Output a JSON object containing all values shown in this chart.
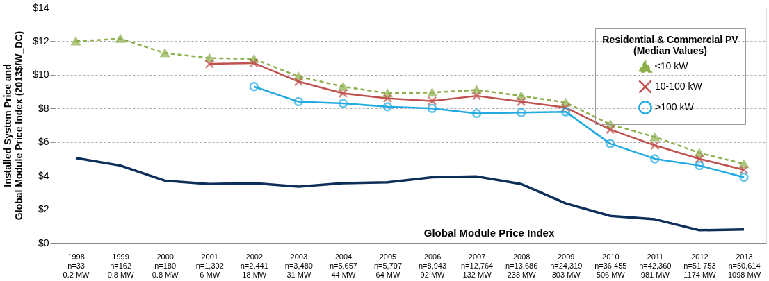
{
  "chart_data": {
    "type": "line",
    "ylabel": "Installed System Price and\nGlobal Module Price Index (2013$/W_DC)",
    "legend_title": "Residential & Commercial PV\n(Median Values)",
    "categories": [
      "1998\nn=33\n0.2 MW",
      "1999\nn=162\n0.8 MW",
      "2000\nn=180\n0.8 MW",
      "2001\nn=1,302\n6 MW",
      "2002\nn=2,441\n18 MW",
      "2003\nn=3,480\n31 MW",
      "2004\nn=5,657\n44 MW",
      "2005\nn=5,797\n64 MW",
      "2006\nn=8,943\n92 MW",
      "2007\nn=12,764\n132 MW",
      "2008\nn=13,686\n238 MW",
      "2009\nn=24,319\n303 MW",
      "2010\nn=36,455\n506 MW",
      "2011\nn=42,360\n981 MW",
      "2012\nn=51,753\n1174 MW",
      "2013\nn=50,614\n1098 MW"
    ],
    "series": [
      {
        "name": "≤10 kW",
        "color": "#8cae4b",
        "marker": "triangle",
        "line_style": "dashed",
        "values": [
          12.0,
          12.15,
          11.3,
          11.0,
          10.95,
          9.9,
          9.3,
          8.9,
          8.95,
          9.1,
          8.75,
          8.35,
          7.05,
          6.3,
          5.35,
          4.7
        ]
      },
      {
        "name": "10-100 kW",
        "color": "#c0504d",
        "marker": "cross",
        "line_style": "solid",
        "values": [
          null,
          null,
          null,
          10.65,
          10.7,
          9.6,
          8.9,
          8.6,
          8.45,
          8.75,
          8.4,
          8.05,
          6.75,
          5.8,
          5.0,
          4.35
        ]
      },
      {
        "name": ">100 kW",
        "color": "#21a9e1",
        "marker": "circle",
        "line_style": "solid",
        "values": [
          null,
          null,
          null,
          null,
          9.3,
          8.4,
          8.3,
          8.1,
          8.0,
          7.7,
          7.75,
          7.8,
          5.9,
          5.0,
          4.6,
          3.9
        ]
      },
      {
        "name": "Global Module Price Index",
        "color": "#0d2f5a",
        "marker": "none",
        "line_style": "solid",
        "values": [
          5.05,
          4.6,
          3.7,
          3.5,
          3.55,
          3.35,
          3.55,
          3.6,
          3.9,
          3.95,
          3.5,
          2.35,
          1.6,
          1.4,
          0.75,
          0.8
        ]
      }
    ],
    "ylim": [
      0,
      14
    ],
    "yticks": [
      {
        "value": 0,
        "label": "$0"
      },
      {
        "value": 2,
        "label": "$2"
      },
      {
        "value": 4,
        "label": "$4"
      },
      {
        "value": 6,
        "label": "$6"
      },
      {
        "value": 8,
        "label": "$8"
      },
      {
        "value": 10,
        "label": "$10"
      },
      {
        "value": 12,
        "label": "$12"
      },
      {
        "value": 14,
        "label": "$14"
      }
    ],
    "grid": "y",
    "legend": "top right"
  }
}
